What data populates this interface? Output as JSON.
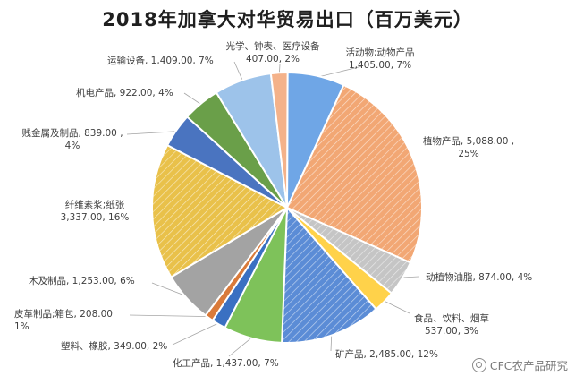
{
  "chart_data": {
    "type": "pie",
    "title": "2018年加拿大对华贸易出口（百万美元）",
    "unit": "百万美元",
    "slices": [
      {
        "name": "活动物;动物产品",
        "value": 1405.0,
        "value_text": "1,405.00",
        "pct_text": "7%",
        "color": "#6fa6e6",
        "hatch": false,
        "label_color": "#404040"
      },
      {
        "name": "植物产品",
        "value": 5088.0,
        "value_text": "5,088.00",
        "pct_text": "25%",
        "color": "#f2a774",
        "hatch": true,
        "label_color": "#e8221b"
      },
      {
        "name": "动植物油脂",
        "value": 874.0,
        "value_text": "874.00",
        "pct_text": "4%",
        "color": "#c5c5c5",
        "hatch": true,
        "label_color": "#e8221b"
      },
      {
        "name": "食品、饮料、烟草",
        "value": 537.0,
        "value_text": "537.00",
        "pct_text": "3%",
        "color": "#ffd24a",
        "hatch": false,
        "label_color": "#404040"
      },
      {
        "name": "矿产品",
        "value": 2485.0,
        "value_text": "2,485.00",
        "pct_text": "12%",
        "color": "#5b8cd6",
        "hatch": true,
        "label_color": "#404040"
      },
      {
        "name": "化工产品",
        "value": 1437.0,
        "value_text": "1,437.00",
        "pct_text": "7%",
        "color": "#7ec25a",
        "hatch": false,
        "label_color": "#404040"
      },
      {
        "name": "塑料、橡胶",
        "value": 349.0,
        "value_text": "349.00",
        "pct_text": "2%",
        "color": "#3a70c2",
        "hatch": false,
        "label_color": "#404040"
      },
      {
        "name": "皮革制品;箱包",
        "value": 208.0,
        "value_text": "208.00",
        "pct_text": "1%",
        "color": "#d97a3a",
        "hatch": false,
        "label_color": "#404040"
      },
      {
        "name": "木及制品",
        "value": 1253.0,
        "value_text": "1,253.00",
        "pct_text": "6%",
        "color": "#a3a3a3",
        "hatch": false,
        "label_color": "#404040"
      },
      {
        "name": "纤维素浆;纸张",
        "value": 3337.0,
        "value_text": "3,337.00",
        "pct_text": "16%",
        "color": "#e9c14a",
        "hatch": true,
        "label_color": "#404040"
      },
      {
        "name": "贱金属及制品",
        "value": 839.0,
        "value_text": "839.00",
        "pct_text": "4%",
        "color": "#4a74c0",
        "hatch": false,
        "label_color": "#404040"
      },
      {
        "name": "机电产品",
        "value": 922.0,
        "value_text": "922.00",
        "pct_text": "4%",
        "color": "#6a9f49",
        "hatch": false,
        "label_color": "#404040"
      },
      {
        "name": "运输设备",
        "value": 1409.0,
        "value_text": "1,409.00",
        "pct_text": "7%",
        "color": "#9dc3ea",
        "hatch": false,
        "label_color": "#404040"
      },
      {
        "name": "光学、钟表、医疗设备",
        "value": 407.0,
        "value_text": "407.00",
        "pct_text": "2%",
        "color": "#f4b28a",
        "hatch": false,
        "label_color": "#404040"
      }
    ]
  },
  "watermark": "CFC农产品研究"
}
